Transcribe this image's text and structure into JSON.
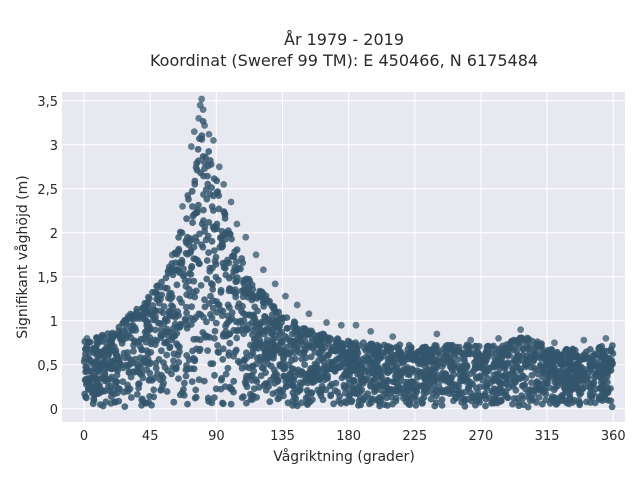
{
  "chart_data": {
    "type": "scatter",
    "title": "År 1979 - 2019",
    "subtitle": "Koordinat (Sweref 99 TM): E 450466, N 6175484",
    "xlabel": "Vågriktning (grader)",
    "ylabel": "Signifikant våghöjd (m)",
    "xlim": [
      -15,
      368
    ],
    "ylim": [
      -0.15,
      3.6
    ],
    "x_ticks": [
      0,
      45,
      90,
      135,
      180,
      225,
      270,
      315,
      360
    ],
    "x_tick_labels": [
      "0",
      "45",
      "90",
      "135",
      "180",
      "225",
      "270",
      "315",
      "360"
    ],
    "y_ticks": [
      0,
      0.5,
      1,
      1.5,
      2,
      2.5,
      3,
      3.5
    ],
    "y_tick_labels": [
      "0",
      "0,5",
      "1",
      "1,5",
      "2",
      "2,5",
      "3",
      "3,5"
    ],
    "grid": true,
    "legend": "none",
    "envelope": {
      "direction": [
        0,
        10,
        20,
        30,
        40,
        50,
        60,
        65,
        70,
        75,
        78,
        80,
        85,
        90,
        95,
        100,
        105,
        110,
        115,
        120,
        125,
        130,
        140,
        150,
        160,
        170,
        180,
        200,
        220,
        240,
        260,
        280,
        300,
        320,
        340,
        360
      ],
      "max_height": [
        0.8,
        0.85,
        0.9,
        1.1,
        1.25,
        1.45,
        1.75,
        2.05,
        2.5,
        2.85,
        3.1,
        3.5,
        3.1,
        2.7,
        2.35,
        2.05,
        1.85,
        1.65,
        1.5,
        1.4,
        1.3,
        1.2,
        1.05,
        0.95,
        0.9,
        0.85,
        0.8,
        0.75,
        0.75,
        0.75,
        0.75,
        0.75,
        0.85,
        0.7,
        0.7,
        0.75
      ],
      "min_height": 0.02
    },
    "highlight_points": [
      {
        "x": 80,
        "y": 3.52
      },
      {
        "x": 79,
        "y": 3.45
      },
      {
        "x": 81,
        "y": 3.4
      },
      {
        "x": 78,
        "y": 3.3
      },
      {
        "x": 82,
        "y": 3.22
      },
      {
        "x": 75,
        "y": 3.15
      },
      {
        "x": 85,
        "y": 3.12
      },
      {
        "x": 88,
        "y": 3.05
      },
      {
        "x": 73,
        "y": 2.98
      },
      {
        "x": 92,
        "y": 2.75
      },
      {
        "x": 95,
        "y": 2.55
      },
      {
        "x": 100,
        "y": 2.35
      },
      {
        "x": 67,
        "y": 2.3
      },
      {
        "x": 104,
        "y": 2.1
      },
      {
        "x": 110,
        "y": 1.95
      },
      {
        "x": 60,
        "y": 1.75
      },
      {
        "x": 117,
        "y": 1.75
      },
      {
        "x": 122,
        "y": 1.58
      },
      {
        "x": 130,
        "y": 1.42
      },
      {
        "x": 50,
        "y": 1.4
      },
      {
        "x": 137,
        "y": 1.28
      },
      {
        "x": 145,
        "y": 1.18
      },
      {
        "x": 40,
        "y": 1.15
      },
      {
        "x": 153,
        "y": 1.08
      },
      {
        "x": 30,
        "y": 1.05
      },
      {
        "x": 165,
        "y": 0.98
      },
      {
        "x": 175,
        "y": 0.95
      },
      {
        "x": 185,
        "y": 0.95
      },
      {
        "x": 210,
        "y": 0.82
      },
      {
        "x": 240,
        "y": 0.85
      },
      {
        "x": 263,
        "y": 0.78
      },
      {
        "x": 297,
        "y": 0.9
      },
      {
        "x": 282,
        "y": 0.8
      },
      {
        "x": 340,
        "y": 0.78
      },
      {
        "x": 355,
        "y": 0.8
      },
      {
        "x": 12,
        "y": 0.82
      },
      {
        "x": 2,
        "y": 0.8
      },
      {
        "x": 320,
        "y": 0.75
      },
      {
        "x": 195,
        "y": 0.88
      }
    ],
    "point_color": "#34566c",
    "background_color": "#e8e9f0",
    "grid_color": "#ffffff"
  }
}
